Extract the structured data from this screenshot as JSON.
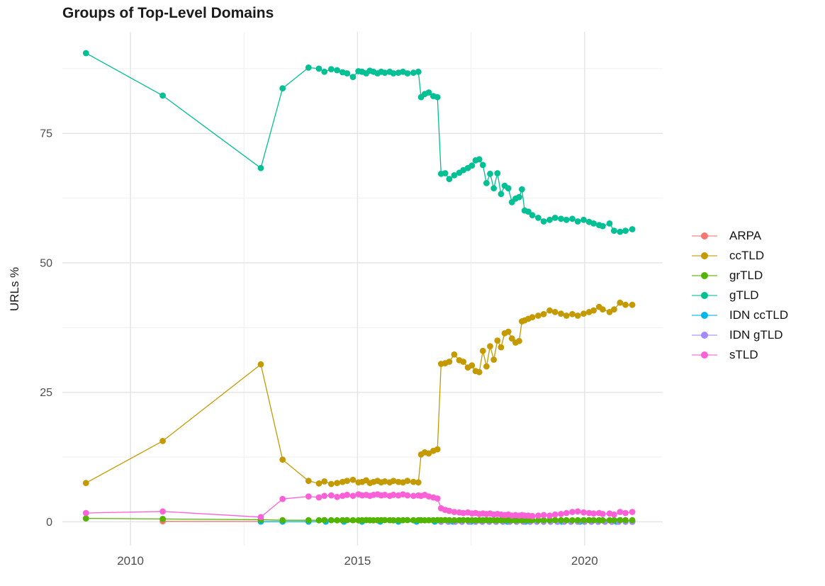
{
  "title": "Groups of Top-Level Domains",
  "y_axis": {
    "title": "URLs %",
    "tick_labels": [
      "0",
      "25",
      "50",
      "75"
    ]
  },
  "x_axis": {
    "title": "",
    "tick_labels": [
      "2010",
      "2015",
      "2020"
    ]
  },
  "colors": {
    "grid_major": "#e4e4e4",
    "grid_minor": "#efefef",
    "tick_text": "#4d4d4d",
    "title_text": "#1b1b1b"
  },
  "legend": {
    "position": "right",
    "items": [
      {
        "label": "ARPA",
        "color": "#F8766D"
      },
      {
        "label": "ccTLD",
        "color": "#C49A00"
      },
      {
        "label": "grTLD",
        "color": "#53B400"
      },
      {
        "label": "gTLD",
        "color": "#00C094"
      },
      {
        "label": "IDN ccTLD",
        "color": "#00B6EB"
      },
      {
        "label": "IDN gTLD",
        "color": "#A58AFF"
      },
      {
        "label": "sTLD",
        "color": "#FB61D7"
      }
    ]
  },
  "chart_data": {
    "type": "line",
    "title": "Groups of Top-Level Domains",
    "xlabel": "",
    "ylabel": "URLs %",
    "grid": "on",
    "legend_position": "right",
    "xlim": [
      2008.5,
      2021.72
    ],
    "ylim": [
      -4.6,
      94.6
    ],
    "x_ticks": [
      2010,
      2015,
      2020
    ],
    "x_minor_ticks": [
      2012.5,
      2017.5
    ],
    "y_ticks": [
      0,
      25,
      50,
      75
    ],
    "y_minor_ticks": [
      12.5,
      37.5,
      62.5,
      87.5
    ],
    "draw_order": [
      "ARPA",
      "IDN ccTLD",
      "IDN gTLD",
      "grTLD",
      "ccTLD",
      "gTLD",
      "sTLD"
    ],
    "x": [
      2009.02,
      2010.71,
      2012.87,
      2013.35,
      2013.92,
      2014.15,
      2014.27,
      2014.42,
      2014.55,
      2014.67,
      2014.77,
      2014.9,
      2015.02,
      2015.1,
      2015.19,
      2015.27,
      2015.35,
      2015.44,
      2015.52,
      2015.6,
      2015.71,
      2015.79,
      2015.9,
      2016.0,
      2016.1,
      2016.23,
      2016.34,
      2016.4,
      2016.48,
      2016.57,
      2016.67,
      2016.76,
      2016.84,
      2016.93,
      2017.02,
      2017.13,
      2017.24,
      2017.33,
      2017.43,
      2017.52,
      2017.6,
      2017.68,
      2017.76,
      2017.84,
      2017.92,
      2018.0,
      2018.08,
      2018.16,
      2018.24,
      2018.32,
      2018.4,
      2018.48,
      2018.56,
      2018.62,
      2018.68,
      2018.76,
      2018.85,
      2018.98,
      2019.1,
      2019.23,
      2019.35,
      2019.48,
      2019.6,
      2019.73,
      2019.85,
      2019.98,
      2020.1,
      2020.2,
      2020.32,
      2020.4,
      2020.55,
      2020.65,
      2020.78,
      2020.9,
      2021.05
    ],
    "series": [
      {
        "name": "ARPA",
        "color": "#F8766D",
        "x": [
          2010.71,
          2012.87
        ],
        "y": [
          0.1,
          0.06
        ]
      },
      {
        "name": "ccTLD",
        "color": "#C49A00",
        "y": [
          7.5,
          15.6,
          30.4,
          12.0,
          7.9,
          7.4,
          7.8,
          7.3,
          7.5,
          7.7,
          7.9,
          8.1,
          7.6,
          7.7,
          8.0,
          7.5,
          7.7,
          7.9,
          7.6,
          7.8,
          7.6,
          7.9,
          7.7,
          7.6,
          7.9,
          7.7,
          7.6,
          13.0,
          13.4,
          13.2,
          13.7,
          14.0,
          30.5,
          30.6,
          30.9,
          32.3,
          31.2,
          30.9,
          29.8,
          30.2,
          29.1,
          28.9,
          33.0,
          30.0,
          33.9,
          31.3,
          35.0,
          33.7,
          36.4,
          36.7,
          35.4,
          34.6,
          34.9,
          38.7,
          38.9,
          39.2,
          39.5,
          39.8,
          40.1,
          40.8,
          40.5,
          40.2,
          39.8,
          40.1,
          39.8,
          40.2,
          40.5,
          40.8,
          41.5,
          41.0,
          40.5,
          41.0,
          42.3,
          41.9,
          41.9
        ]
      },
      {
        "name": "grTLD",
        "color": "#53B400",
        "y": [
          0.65,
          0.55,
          0.4,
          0.3,
          0.3,
          0.28,
          0.32,
          0.3,
          0.28,
          0.3,
          0.32,
          0.3,
          0.28,
          0.3,
          0.32,
          0.3,
          0.28,
          0.3,
          0.3,
          0.32,
          0.3,
          0.28,
          0.3,
          0.3,
          0.32,
          0.3,
          0.3,
          0.3,
          0.28,
          0.3,
          0.3,
          0.32,
          0.3,
          0.32,
          0.3,
          0.28,
          0.3,
          0.32,
          0.3,
          0.3,
          0.28,
          0.3,
          0.3,
          0.32,
          0.3,
          0.3,
          0.28,
          0.3,
          0.32,
          0.3,
          0.3,
          0.28,
          0.3,
          0.3,
          0.32,
          0.3,
          0.3,
          0.28,
          0.3,
          0.3,
          0.32,
          0.3,
          0.3,
          0.28,
          0.3,
          0.3,
          0.32,
          0.3,
          0.3,
          0.28,
          0.3,
          0.3,
          0.32,
          0.3,
          0.3
        ]
      },
      {
        "name": "gTLD",
        "color": "#00C094",
        "y": [
          90.5,
          82.3,
          68.3,
          83.7,
          87.7,
          87.5,
          86.9,
          87.4,
          87.2,
          86.8,
          86.6,
          85.9,
          87.0,
          86.9,
          86.6,
          87.1,
          86.9,
          86.6,
          86.9,
          86.7,
          86.9,
          86.6,
          86.7,
          86.9,
          86.6,
          86.7,
          86.9,
          82.0,
          82.6,
          82.9,
          82.2,
          82.0,
          67.2,
          67.3,
          66.2,
          66.9,
          67.4,
          67.9,
          68.3,
          68.8,
          69.8,
          70.0,
          68.9,
          65.4,
          67.2,
          64.4,
          67.3,
          63.3,
          64.9,
          64.4,
          61.7,
          62.4,
          62.7,
          64.2,
          60.1,
          59.9,
          59.2,
          58.7,
          58.0,
          58.3,
          58.7,
          58.5,
          58.3,
          58.5,
          58.0,
          58.3,
          57.9,
          57.6,
          57.3,
          57.1,
          57.6,
          56.2,
          56.0,
          56.2,
          56.5
        ]
      },
      {
        "name": "IDN ccTLD",
        "color": "#00B6EB",
        "x": [
          2012.87,
          2013.35,
          2013.92,
          2014.3,
          2014.7,
          2015.1,
          2015.5,
          2015.9,
          2016.3,
          2016.7,
          2017.1,
          2017.5,
          2017.9,
          2018.3,
          2018.7,
          2019.1,
          2019.5,
          2019.9,
          2020.3,
          2020.7,
          2021.05
        ],
        "y": [
          0.02,
          0.02,
          0.02,
          0.02,
          0.02,
          0.02,
          0.02,
          0.02,
          0.02,
          0.02,
          0.02,
          0.02,
          0.02,
          0.02,
          0.02,
          0.02,
          0.02,
          0.02,
          0.02,
          0.02,
          0.02
        ]
      },
      {
        "name": "IDN gTLD",
        "color": "#A58AFF",
        "x": [
          2016.84,
          2017.0,
          2017.15,
          2017.3,
          2017.45,
          2017.6,
          2017.75,
          2017.9,
          2018.05,
          2018.2,
          2018.35,
          2018.5,
          2018.65,
          2018.8,
          2018.95,
          2019.1,
          2019.25,
          2019.4,
          2019.55,
          2019.7,
          2019.85,
          2020.0,
          2020.15,
          2020.3,
          2020.45,
          2020.6,
          2020.75,
          2020.9,
          2021.05
        ],
        "y": [
          0.0,
          0.0,
          0.0,
          0.0,
          0.0,
          0.0,
          0.0,
          0.0,
          0.0,
          0.0,
          0.0,
          0.0,
          0.0,
          0.0,
          0.0,
          0.0,
          0.0,
          0.0,
          0.0,
          0.0,
          0.0,
          0.0,
          0.0,
          0.0,
          0.0,
          0.0,
          0.0,
          0.0,
          0.0
        ]
      },
      {
        "name": "sTLD",
        "color": "#FB61D7",
        "y": [
          1.7,
          2.0,
          0.9,
          4.4,
          4.9,
          4.7,
          5.0,
          5.1,
          4.8,
          5.0,
          5.2,
          5.0,
          5.3,
          5.1,
          5.2,
          5.0,
          5.2,
          5.3,
          5.1,
          5.2,
          5.0,
          5.2,
          5.1,
          5.3,
          5.1,
          5.0,
          5.1,
          5.0,
          5.2,
          4.9,
          4.7,
          4.5,
          2.6,
          2.3,
          2.1,
          1.9,
          1.8,
          1.7,
          1.8,
          1.6,
          1.7,
          1.5,
          1.6,
          1.5,
          1.6,
          1.4,
          1.5,
          1.4,
          1.3,
          1.4,
          1.2,
          1.3,
          1.2,
          1.3,
          1.2,
          1.2,
          1.1,
          1.2,
          1.3,
          1.2,
          1.4,
          1.5,
          1.7,
          1.9,
          2.0,
          1.8,
          1.7,
          1.6,
          1.7,
          1.5,
          1.6,
          1.4,
          1.9,
          1.7,
          1.9
        ]
      }
    ]
  }
}
